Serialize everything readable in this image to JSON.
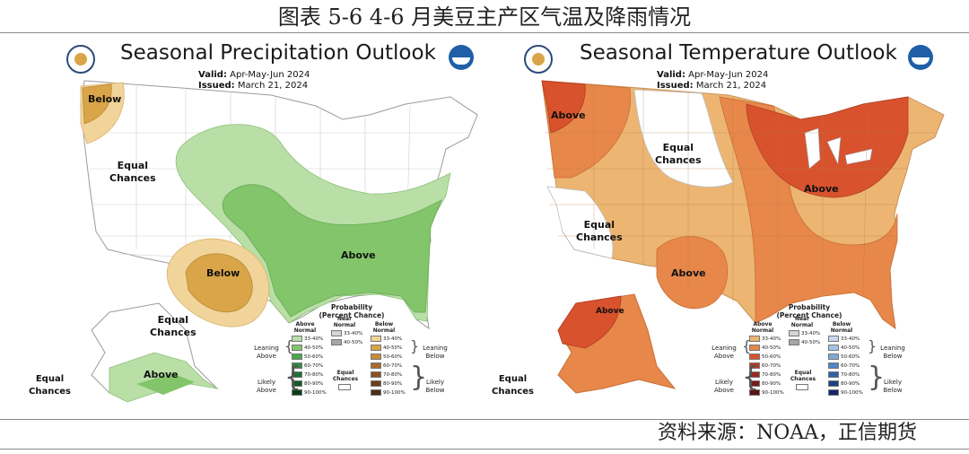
{
  "figure_title": "图表 5-6   4-6 月美豆主产区气温及降雨情况",
  "source": "资料来源：NOAA，正信期货",
  "colors": {
    "precip_above_33": "#b9dfa7",
    "precip_above_40": "#82c56a",
    "precip_below_33": "#f1d49a",
    "precip_below_40": "#d9a548",
    "temp_above_33": "#ecb572",
    "temp_above_40": "#e7874a",
    "temp_above_50": "#d8522e"
  },
  "maps": [
    {
      "title": "Seasonal Precipitation Outlook",
      "valid_label": "Valid:",
      "valid": "Apr-May-Jun 2024",
      "issued_label": "Issued:",
      "issued": "March 21, 2024",
      "regions": [
        {
          "label": "Below"
        },
        {
          "label": "Equal\nChances"
        },
        {
          "label": "Below"
        },
        {
          "label": "Above"
        },
        {
          "label": "Equal\nChances"
        },
        {
          "label": "Above"
        },
        {
          "label": "Equal\nChances"
        }
      ],
      "legend": {
        "title": "Probability\n(Percent Chance)",
        "col_above": "Above\nNormal",
        "col_near": "Near\nNormal",
        "col_below": "Below\nNormal",
        "leaning_above": "Leaning\nAbove",
        "leaning_below": "Leaning\nBelow",
        "likely_above": "Likely\nAbove",
        "likely_below": "Likely\nBelow",
        "equal_chances": "Equal\nChances",
        "above_steps": [
          "33-40%",
          "40-50%",
          "50-60%",
          "60-70%",
          "70-80%",
          "80-90%",
          "90-100%"
        ],
        "near_steps": [
          "33-40%",
          "40-50%"
        ],
        "below_steps": [
          "33-40%",
          "40-50%",
          "50-60%",
          "60-70%",
          "70-80%",
          "80-90%",
          "90-100%"
        ],
        "above_colors": [
          "#b9dfa7",
          "#82c56a",
          "#4aa84a",
          "#2f8c3e",
          "#1f7033",
          "#155a26",
          "#0c3f18"
        ],
        "near_colors": [
          "#d4d4d4",
          "#a6a6a6"
        ],
        "below_colors": [
          "#f1d49a",
          "#d9a548",
          "#c98a3a",
          "#a96a2c",
          "#8a5124",
          "#6c3d1c",
          "#4f2c15"
        ]
      }
    },
    {
      "title": "Seasonal Temperature Outlook",
      "valid_label": "Valid:",
      "valid": "Apr-May-Jun 2024",
      "issued_label": "Issued:",
      "issued": "March 21, 2024",
      "regions": [
        {
          "label": "Above"
        },
        {
          "label": "Equal\nChances"
        },
        {
          "label": "Above"
        },
        {
          "label": "Equal\nChances"
        },
        {
          "label": "Above"
        },
        {
          "label": "Above"
        },
        {
          "label": "Equal\nChances"
        }
      ],
      "legend": {
        "title": "Probability\n(Percent Chance)",
        "col_above": "Above\nNormal",
        "col_near": "Near\nNormal",
        "col_below": "Below\nNormal",
        "leaning_above": "Leaning\nAbove",
        "leaning_below": "Leaning\nBelow",
        "likely_above": "Likely\nAbove",
        "likely_below": "Likely\nBelow",
        "equal_chances": "Equal\nChances",
        "above_steps": [
          "33-40%",
          "40-50%",
          "50-60%",
          "60-70%",
          "70-80%",
          "80-90%",
          "90-100%"
        ],
        "near_steps": [
          "33-40%",
          "40-50%"
        ],
        "below_steps": [
          "33-40%",
          "40-50%",
          "50-60%",
          "60-70%",
          "70-80%",
          "80-90%",
          "90-100%"
        ],
        "above_colors": [
          "#ecb572",
          "#e7874a",
          "#d8522e",
          "#b83a26",
          "#992a20",
          "#7a1e18",
          "#5a1410"
        ],
        "near_colors": [
          "#d4d4d4",
          "#a6a6a6"
        ],
        "below_colors": [
          "#c6d8ee",
          "#a3c3e6",
          "#7fa8d8",
          "#4f86c6",
          "#2f62a8",
          "#1c3f88",
          "#12246a"
        ]
      }
    }
  ]
}
